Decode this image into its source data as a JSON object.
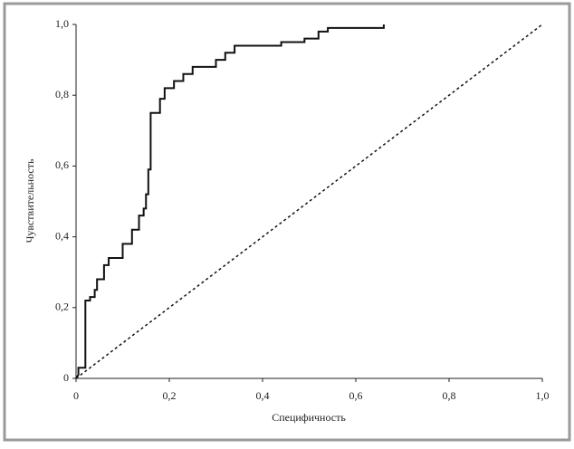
{
  "chart_data": {
    "type": "line",
    "xlabel": "Специфичность",
    "ylabel": "Чувствительность",
    "xlim": [
      0,
      1
    ],
    "ylim": [
      0,
      1
    ],
    "xticks": [
      0,
      {
        "value": 0.2,
        "label": "0,2"
      },
      {
        "value": 0.4,
        "label": "0,4"
      },
      {
        "value": 0.6,
        "label": "0,6"
      },
      {
        "value": 0.8,
        "label": "0,8"
      },
      {
        "value": 1,
        "label": "1,0"
      }
    ],
    "yticks": [
      0,
      {
        "value": 0.2,
        "label": "0,2"
      },
      {
        "value": 0.4,
        "label": "0,4"
      },
      {
        "value": 0.6,
        "label": "0,6"
      },
      {
        "value": 0.8,
        "label": "0,8"
      },
      {
        "value": 1,
        "label": "1,0"
      }
    ],
    "series": [
      {
        "color": "#111111",
        "dash": false,
        "x": [
          0,
          0.005,
          0.005,
          0.02,
          0.02,
          0.03,
          0.03,
          0.04,
          0.04,
          0.045,
          0.045,
          0.06,
          0.06,
          0.07,
          0.07,
          0.1,
          0.1,
          0.12,
          0.12,
          0.135,
          0.135,
          0.145,
          0.145,
          0.15,
          0.15,
          0.155,
          0.155,
          0.16,
          0.16,
          0.18,
          0.18,
          0.19,
          0.19,
          0.21,
          0.21,
          0.23,
          0.23,
          0.25,
          0.25,
          0.3,
          0.3,
          0.32,
          0.32,
          0.34,
          0.34,
          0.44,
          0.44,
          0.49,
          0.49,
          0.52,
          0.52,
          0.54,
          0.54,
          0.66,
          0.66
        ],
        "values": [
          0,
          0.01,
          0.03,
          0.03,
          0.22,
          0.22,
          0.23,
          0.23,
          0.25,
          0.25,
          0.28,
          0.28,
          0.32,
          0.32,
          0.34,
          0.34,
          0.38,
          0.38,
          0.42,
          0.42,
          0.46,
          0.46,
          0.48,
          0.48,
          0.52,
          0.52,
          0.59,
          0.59,
          0.75,
          0.75,
          0.79,
          0.79,
          0.82,
          0.82,
          0.84,
          0.84,
          0.86,
          0.86,
          0.88,
          0.88,
          0.9,
          0.9,
          0.92,
          0.92,
          0.94,
          0.94,
          0.95,
          0.95,
          0.96,
          0.96,
          0.98,
          0.98,
          0.99,
          0.99,
          1
        ]
      },
      {
        "color": "#111111",
        "dash": true,
        "x": [
          0,
          1
        ],
        "values": [
          0,
          1
        ]
      }
    ]
  }
}
